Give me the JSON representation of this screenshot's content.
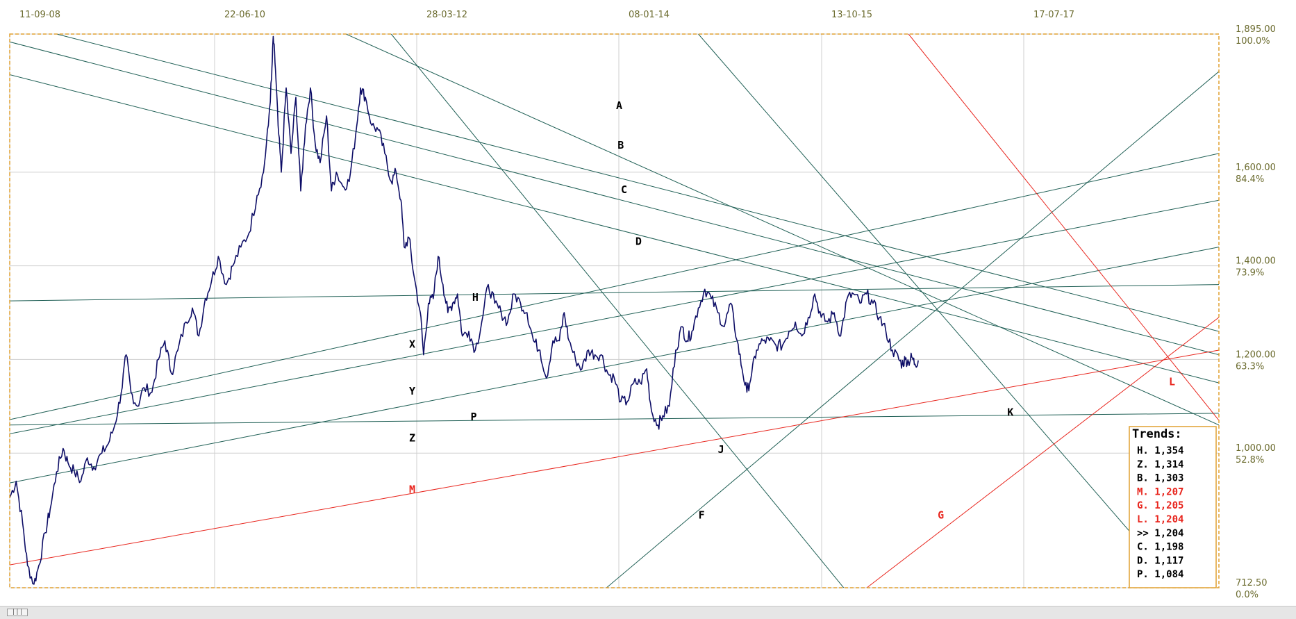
{
  "chart_data": {
    "type": "line",
    "x_ticks": [
      "11-09-08",
      "22-06-10",
      "28-03-12",
      "08-01-14",
      "13-10-15",
      "17-07-17"
    ],
    "y_ticks": [
      {
        "price": "1,895.00",
        "pct": "100.0%"
      },
      {
        "price": "1,600.00",
        "pct": "84.4%"
      },
      {
        "price": "1,400.00",
        "pct": "73.9%"
      },
      {
        "price": "1,200.00",
        "pct": "63.3%"
      },
      {
        "price": "1,000.00",
        "pct": "52.8%"
      },
      {
        "price": "712.50",
        "pct": "0.0%"
      }
    ],
    "y_tick_values": [
      1895,
      1600,
      1400,
      1200,
      1000,
      712.5
    ],
    "ylim": [
      712.5,
      1895
    ],
    "x_range_days": [
      0,
      3740
    ],
    "series": [
      {
        "color": "#0d0d66",
        "points_day_price": [
          [
            0,
            905
          ],
          [
            20,
            940
          ],
          [
            40,
            850
          ],
          [
            55,
            760
          ],
          [
            75,
            720
          ],
          [
            90,
            760
          ],
          [
            110,
            830
          ],
          [
            125,
            880
          ],
          [
            145,
            960
          ],
          [
            165,
            1010
          ],
          [
            180,
            980
          ],
          [
            200,
            960
          ],
          [
            220,
            940
          ],
          [
            240,
            990
          ],
          [
            260,
            970
          ],
          [
            285,
            1000
          ],
          [
            305,
            1020
          ],
          [
            325,
            1060
          ],
          [
            345,
            1130
          ],
          [
            360,
            1210
          ],
          [
            375,
            1130
          ],
          [
            395,
            1100
          ],
          [
            415,
            1140
          ],
          [
            440,
            1130
          ],
          [
            460,
            1200
          ],
          [
            480,
            1240
          ],
          [
            500,
            1170
          ],
          [
            520,
            1220
          ],
          [
            545,
            1280
          ],
          [
            565,
            1310
          ],
          [
            585,
            1250
          ],
          [
            605,
            1330
          ],
          [
            625,
            1370
          ],
          [
            645,
            1420
          ],
          [
            670,
            1360
          ],
          [
            690,
            1400
          ],
          [
            715,
            1440
          ],
          [
            740,
            1470
          ],
          [
            765,
            1550
          ],
          [
            785,
            1600
          ],
          [
            800,
            1700
          ],
          [
            810,
            1800
          ],
          [
            815,
            1890
          ],
          [
            822,
            1820
          ],
          [
            830,
            1700
          ],
          [
            840,
            1600
          ],
          [
            855,
            1780
          ],
          [
            870,
            1640
          ],
          [
            885,
            1760
          ],
          [
            900,
            1560
          ],
          [
            915,
            1700
          ],
          [
            930,
            1780
          ],
          [
            945,
            1660
          ],
          [
            960,
            1620
          ],
          [
            980,
            1720
          ],
          [
            995,
            1560
          ],
          [
            1010,
            1600
          ],
          [
            1030,
            1570
          ],
          [
            1050,
            1580
          ],
          [
            1070,
            1680
          ],
          [
            1085,
            1780
          ],
          [
            1100,
            1760
          ],
          [
            1120,
            1700
          ],
          [
            1140,
            1690
          ],
          [
            1160,
            1640
          ],
          [
            1180,
            1580
          ],
          [
            1195,
            1600
          ],
          [
            1210,
            1540
          ],
          [
            1220,
            1440
          ],
          [
            1235,
            1460
          ],
          [
            1250,
            1380
          ],
          [
            1270,
            1300
          ],
          [
            1280,
            1210
          ],
          [
            1295,
            1320
          ],
          [
            1310,
            1330
          ],
          [
            1325,
            1420
          ],
          [
            1340,
            1360
          ],
          [
            1355,
            1300
          ],
          [
            1370,
            1320
          ],
          [
            1385,
            1340
          ],
          [
            1400,
            1250
          ],
          [
            1420,
            1260
          ],
          [
            1440,
            1220
          ],
          [
            1460,
            1280
          ],
          [
            1480,
            1360
          ],
          [
            1500,
            1320
          ],
          [
            1520,
            1300
          ],
          [
            1540,
            1280
          ],
          [
            1560,
            1340
          ],
          [
            1580,
            1320
          ],
          [
            1600,
            1300
          ],
          [
            1620,
            1240
          ],
          [
            1640,
            1220
          ],
          [
            1660,
            1160
          ],
          [
            1680,
            1240
          ],
          [
            1700,
            1240
          ],
          [
            1715,
            1300
          ],
          [
            1730,
            1240
          ],
          [
            1750,
            1200
          ],
          [
            1770,
            1180
          ],
          [
            1790,
            1220
          ],
          [
            1810,
            1210
          ],
          [
            1830,
            1210
          ],
          [
            1850,
            1170
          ],
          [
            1870,
            1160
          ],
          [
            1890,
            1110
          ],
          [
            1910,
            1110
          ],
          [
            1930,
            1150
          ],
          [
            1950,
            1150
          ],
          [
            1970,
            1180
          ],
          [
            1985,
            1090
          ],
          [
            2005,
            1060
          ],
          [
            2020,
            1080
          ],
          [
            2040,
            1100
          ],
          [
            2060,
            1220
          ],
          [
            2080,
            1270
          ],
          [
            2095,
            1240
          ],
          [
            2110,
            1260
          ],
          [
            2130,
            1310
          ],
          [
            2150,
            1350
          ],
          [
            2170,
            1330
          ],
          [
            2190,
            1300
          ],
          [
            2210,
            1270
          ],
          [
            2230,
            1320
          ],
          [
            2250,
            1240
          ],
          [
            2265,
            1180
          ],
          [
            2280,
            1130
          ],
          [
            2295,
            1170
          ],
          [
            2310,
            1220
          ],
          [
            2330,
            1240
          ],
          [
            2350,
            1240
          ],
          [
            2370,
            1230
          ],
          [
            2390,
            1230
          ],
          [
            2410,
            1260
          ],
          [
            2430,
            1280
          ],
          [
            2450,
            1250
          ],
          [
            2470,
            1290
          ],
          [
            2490,
            1340
          ],
          [
            2510,
            1290
          ],
          [
            2530,
            1280
          ],
          [
            2550,
            1300
          ],
          [
            2570,
            1250
          ],
          [
            2590,
            1330
          ],
          [
            2610,
            1340
          ],
          [
            2630,
            1320
          ],
          [
            2650,
            1340
          ],
          [
            2670,
            1320
          ],
          [
            2690,
            1290
          ],
          [
            2710,
            1260
          ],
          [
            2730,
            1220
          ],
          [
            2750,
            1200
          ],
          [
            2760,
            1190
          ],
          [
            2770,
            1200
          ],
          [
            2780,
            1195
          ],
          [
            2790,
            1205
          ],
          [
            2800,
            1190
          ],
          [
            2810,
            1198
          ]
        ]
      }
    ],
    "trendlines": [
      {
        "label": "A",
        "color": "#1f5f55",
        "p1": [
          145,
          1895
        ],
        "p2": [
          3740,
          1260
        ]
      },
      {
        "label": "B",
        "color": "#1f5f55",
        "p1": [
          -10,
          1880
        ],
        "p2": [
          3740,
          1210
        ]
      },
      {
        "label": "C",
        "color": "#1f5f55",
        "p1": [
          -10,
          1810
        ],
        "p2": [
          3740,
          1150
        ]
      },
      {
        "label": "D",
        "color": "#1f5f55",
        "p1": [
          1040,
          1895
        ],
        "p2": [
          3740,
          1060
        ]
      },
      {
        "label": "H",
        "color": "#1f5f55",
        "p1": [
          -10,
          1325
        ],
        "p2": [
          3740,
          1360
        ]
      },
      {
        "label": "X",
        "color": "#1f5f55",
        "p1": [
          -10,
          1070
        ],
        "p2": [
          3740,
          1640
        ]
      },
      {
        "label": "Y",
        "color": "#1f5f55",
        "p1": [
          -10,
          1040
        ],
        "p2": [
          3740,
          1540
        ]
      },
      {
        "label": "Z",
        "color": "#1f5f55",
        "p1": [
          -10,
          935
        ],
        "p2": [
          3740,
          1440
        ]
      },
      {
        "label": "P",
        "color": "#1f5f55",
        "p1": [
          -10,
          1060
        ],
        "p2": [
          3740,
          1085
        ]
      },
      {
        "label": "J",
        "color": "#1f5f55",
        "p1": [
          1180,
          1895
        ],
        "p2": [
          2580,
          712
        ]
      },
      {
        "label": "F",
        "color": "#1f5f55",
        "p1": [
          2130,
          1895
        ],
        "p2": [
          3480,
          820
        ]
      },
      {
        "label": "K",
        "color": "#1f5f55",
        "p1": [
          1845,
          712
        ],
        "p2": [
          3740,
          1815
        ]
      },
      {
        "label": "M",
        "color": "#e8251d",
        "p1": [
          -10,
          760
        ],
        "p2": [
          3740,
          1220
        ]
      },
      {
        "label": "G",
        "color": "#e8251d",
        "p1": [
          2780,
          1895
        ],
        "p2": [
          3740,
          1070
        ]
      },
      {
        "label": "L",
        "color": "#e8251d",
        "p1": [
          2650,
          712
        ],
        "p2": [
          3740,
          1290
        ]
      }
    ],
    "line_labels": [
      {
        "text": "A",
        "color": "#000000",
        "day": 1885,
        "price": 1735
      },
      {
        "text": "B",
        "color": "#000000",
        "day": 1890,
        "price": 1650
      },
      {
        "text": "C",
        "color": "#000000",
        "day": 1900,
        "price": 1555
      },
      {
        "text": "D",
        "color": "#000000",
        "day": 1945,
        "price": 1445
      },
      {
        "text": "H",
        "color": "#000000",
        "day": 1440,
        "price": 1325
      },
      {
        "text": "X",
        "color": "#000000",
        "day": 1245,
        "price": 1225
      },
      {
        "text": "Y",
        "color": "#000000",
        "day": 1245,
        "price": 1125
      },
      {
        "text": "P",
        "color": "#000000",
        "day": 1435,
        "price": 1070
      },
      {
        "text": "Z",
        "color": "#000000",
        "day": 1245,
        "price": 1025
      },
      {
        "text": "J",
        "color": "#000000",
        "day": 2200,
        "price": 1000
      },
      {
        "text": "K",
        "color": "#000000",
        "day": 3095,
        "price": 1080
      },
      {
        "text": "F",
        "color": "#000000",
        "day": 2140,
        "price": 860
      },
      {
        "text": "M",
        "color": "#e8251d",
        "day": 1245,
        "price": 915
      },
      {
        "text": "G",
        "color": "#e8251d",
        "day": 2880,
        "price": 860
      },
      {
        "text": "L",
        "color": "#e8251d",
        "day": 3595,
        "price": 1145
      }
    ],
    "trends_title": "Trends:",
    "trends": [
      {
        "text": "H. 1,354",
        "color": "#000000"
      },
      {
        "text": "Z. 1,314",
        "color": "#000000"
      },
      {
        "text": "B. 1,303",
        "color": "#000000"
      },
      {
        "text": "M. 1,207",
        "color": "#e8251d"
      },
      {
        "text": "G. 1,205",
        "color": "#e8251d"
      },
      {
        "text": "L. 1,204",
        "color": "#e8251d"
      },
      {
        "text": ">> 1,204",
        "color": "#000000"
      },
      {
        "text": "C. 1,198",
        "color": "#000000"
      },
      {
        "text": "D. 1,117",
        "color": "#000000"
      },
      {
        "text": "P. 1,084",
        "color": "#000000"
      }
    ],
    "grid": true,
    "colors": {
      "price": "#0d0d66",
      "trend": "#1f5f55",
      "red": "#e8251d",
      "frame": "#e0a030",
      "grid": "#cfcfcf",
      "axis_text": "#6b6b2e"
    }
  },
  "scrollbar": {
    "thumb_label": "|||"
  }
}
